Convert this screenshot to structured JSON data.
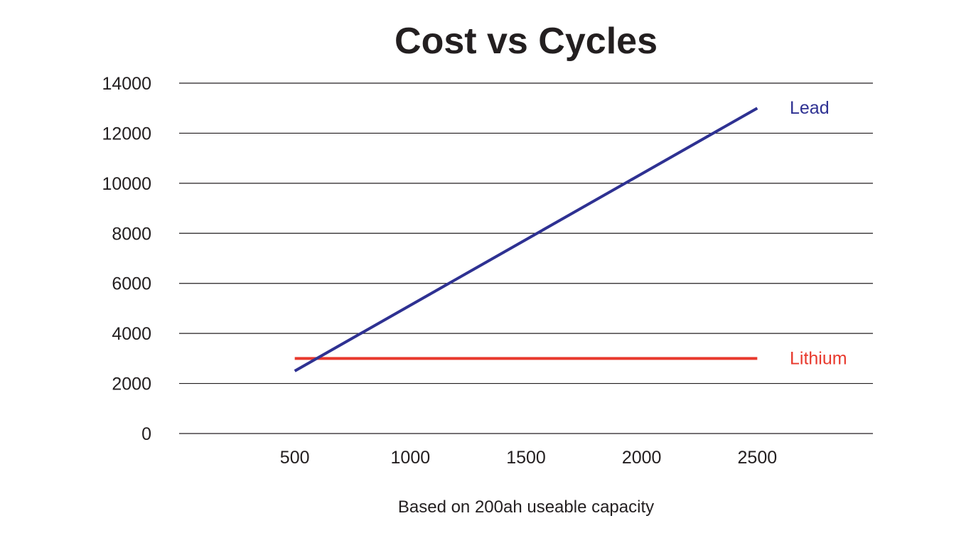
{
  "chart_data": {
    "type": "line",
    "title": "Cost vs Cycles",
    "xlabel": "Based on 200ah useable capacity",
    "ylabel": "",
    "x": [
      500,
      2500
    ],
    "xticks": [
      500,
      1000,
      1500,
      2000,
      2500
    ],
    "yticks": [
      0,
      2000,
      4000,
      6000,
      8000,
      10000,
      12000,
      14000
    ],
    "xlim": [
      0,
      3000
    ],
    "ylim": [
      0,
      14000
    ],
    "grid": true,
    "legend": "inline-right",
    "series": [
      {
        "name": "Lead",
        "x": [
          500,
          2500
        ],
        "values": [
          2500,
          13000
        ],
        "color": "#2e3192"
      },
      {
        "name": "Lithium",
        "x": [
          500,
          2500
        ],
        "values": [
          3000,
          3000
        ],
        "color": "#e8392d"
      }
    ]
  }
}
